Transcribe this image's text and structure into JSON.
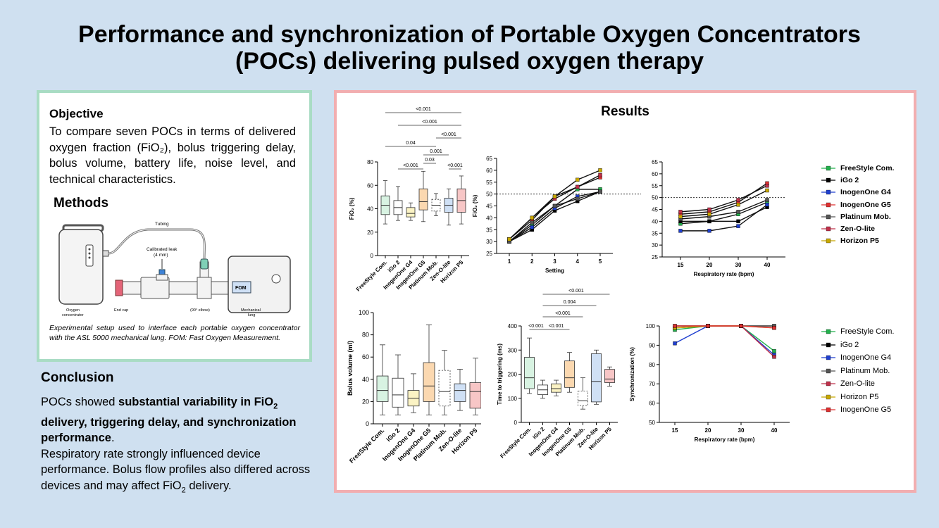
{
  "title": {
    "line1": "Performance and synchronization of Portable Oxygen Concentrators",
    "line2": "(POCs) delivering pulsed oxygen therapy"
  },
  "objective": {
    "heading": "Objective",
    "text": "To compare seven POCs in terms of delivered oxygen fraction (FiO₂), bolus triggering delay, bolus volume, battery life, noise level, and technical characteristics."
  },
  "methods": {
    "heading": "Methods",
    "diagram": {
      "tubing": "Tubing",
      "leak1": "Calibrated leak",
      "leak2": "(4 mm)",
      "concentrator1": "Oxygen",
      "concentrator2": "concentrator",
      "endcap": "End cap",
      "elbow": "(90° elbow)",
      "fom": "FOM",
      "lung1": "Mechanical",
      "lung2": "lung"
    },
    "caption": "Experimental setup used to interface each portable oxygen concentrator with the ASL 5000 mechanical lung. FOM: Fast Oxygen Measurement."
  },
  "conclusion": {
    "heading": "Conclusion",
    "p1_a": "POCs showed ",
    "p1_b": "substantial variability in FiO",
    "p1_sub": "2",
    "p1_c": " delivery, triggering delay, and synchronization performance",
    "p1_d": ".",
    "p2_a": "Respiratory rate strongly influenced device performance. Bolus flow profiles also differed across devices and may affect FiO",
    "p2_sub": "2",
    "p2_b": " delivery."
  },
  "results": {
    "heading": "Results"
  },
  "colors": {
    "FreeStyle Com.": "#22b14c",
    "iGo 2": "#000000",
    "InogenOne G4": "#1f3fd0",
    "InogenOne G5": "#e03030",
    "Platinum Mob.": "#555555",
    "Zen-O-lite": "#c0304a",
    "Horizon P5": "#c8a800"
  },
  "legend_top": [
    "FreeStyle Com.",
    "iGo 2",
    "InogenOne G4",
    "InogenOne G5",
    "Platinum Mob.",
    "Zen-O-lite",
    "Horizon P5"
  ],
  "legend_bottom": [
    "FreeStyle Com.",
    "iGo 2",
    "InogenOne G4",
    "Platinum Mob.",
    "Zen-O-lite",
    "Horizon P5",
    "InogenOne G5"
  ],
  "chart_data": [
    {
      "type": "box",
      "ylabel": "FiO₂ (%)",
      "ylim": [
        0,
        80
      ],
      "yticks": [
        0,
        20,
        40,
        60,
        80
      ],
      "categories": [
        "FreeStyle Com.",
        "iGo 2",
        "InogenOne G4",
        "InogenOne G5",
        "Platinum Mob.",
        "Zen-O-lite",
        "Horizon P5"
      ],
      "fills": [
        "#d8f3e2",
        "#ffffff",
        "#fbf3c4",
        "#fbd8b0",
        "#ffffff",
        "#cfe0f5",
        "#f7c6c6"
      ],
      "boxes": [
        {
          "min": 27,
          "q1": 35,
          "med": 43,
          "q3": 51,
          "max": 64
        },
        {
          "min": 30,
          "q1": 35,
          "med": 41,
          "q3": 47,
          "max": 59
        },
        {
          "min": 30,
          "q1": 33,
          "med": 36,
          "q3": 41,
          "max": 45
        },
        {
          "min": 29,
          "q1": 39,
          "med": 46,
          "q3": 57,
          "max": 72
        },
        {
          "min": 34,
          "q1": 38,
          "med": 43,
          "q3": 48,
          "max": 53
        },
        {
          "min": 26,
          "q1": 37,
          "med": 43,
          "q3": 49,
          "max": 57
        },
        {
          "min": 27,
          "q1": 37,
          "med": 47,
          "q3": 57,
          "max": 68
        }
      ],
      "pvalues": [
        "<0.001",
        "<0.001",
        "<0.001",
        "0.04",
        "0.001",
        "0.03",
        "<0.001",
        "<0.001"
      ]
    },
    {
      "type": "line",
      "xlabel": "Setting",
      "ylabel": "FiO₂ (%)",
      "x": [
        1,
        2,
        3,
        4,
        5
      ],
      "ylim": [
        25,
        65
      ],
      "yticks": [
        25,
        30,
        35,
        40,
        45,
        50,
        55,
        60,
        65
      ],
      "reference": 50,
      "series": [
        {
          "name": "FreeStyle Com.",
          "values": [
            30,
            37,
            45,
            52,
            52
          ]
        },
        {
          "name": "iGo 2",
          "values": [
            30,
            35,
            43,
            47,
            51
          ]
        },
        {
          "name": "InogenOne G4",
          "values": [
            30,
            36,
            44,
            49,
            51
          ]
        },
        {
          "name": "InogenOne G5",
          "values": [
            31,
            39,
            49,
            53,
            57
          ]
        },
        {
          "name": "Platinum Mob.",
          "values": [
            30,
            38,
            45,
            48,
            51
          ]
        },
        {
          "name": "Zen-O-lite",
          "values": [
            31,
            40,
            48,
            53,
            58
          ]
        },
        {
          "name": "Horizon P5",
          "values": [
            31,
            40,
            49,
            56,
            60
          ]
        }
      ]
    },
    {
      "type": "line",
      "xlabel": "Respiratory rate (bpm)",
      "x": [
        15,
        20,
        30,
        40
      ],
      "ylim": [
        25,
        65
      ],
      "yticks": [
        25,
        30,
        35,
        40,
        45,
        50,
        55,
        60,
        65
      ],
      "reference": 50,
      "series": [
        {
          "name": "FreeStyle Com.",
          "values": [
            39,
            40,
            43,
            48
          ]
        },
        {
          "name": "iGo 2",
          "values": [
            40,
            40,
            40,
            46
          ]
        },
        {
          "name": "InogenOne G4",
          "values": [
            36,
            36,
            38,
            47
          ]
        },
        {
          "name": "InogenOne G5",
          "values": [
            43,
            44,
            48,
            56
          ]
        },
        {
          "name": "Platinum Mob.",
          "values": [
            41,
            42,
            44,
            49
          ]
        },
        {
          "name": "Zen-O-lite",
          "values": [
            44,
            45,
            49,
            55
          ]
        },
        {
          "name": "Horizon P5",
          "values": [
            42,
            43,
            47,
            53
          ]
        }
      ]
    },
    {
      "type": "box",
      "ylabel": "Bolus volume (ml)",
      "ylim": [
        0,
        100
      ],
      "yticks": [
        0,
        20,
        40,
        60,
        80,
        100
      ],
      "categories": [
        "FreeStyle Com.",
        "iGo 2",
        "InogenOne G4",
        "InogenOne G5",
        "Platinum Mob.",
        "Zen-O-lite",
        "Horizon P5"
      ],
      "fills": [
        "#d8f3e2",
        "#ffffff",
        "#fbf3c4",
        "#fbd8b0",
        "#ffffff",
        "#cfe0f5",
        "#f7c6c6"
      ],
      "boxes": [
        {
          "min": 8,
          "q1": 20,
          "med": 30,
          "q3": 43,
          "max": 71
        },
        {
          "min": 8,
          "q1": 15,
          "med": 26,
          "q3": 41,
          "max": 62
        },
        {
          "min": 10,
          "q1": 16,
          "med": 23,
          "q3": 30,
          "max": 45
        },
        {
          "min": 8,
          "q1": 20,
          "med": 34,
          "q3": 55,
          "max": 89
        },
        {
          "min": 8,
          "q1": 16,
          "med": 29,
          "q3": 48,
          "max": 66
        },
        {
          "min": 12,
          "q1": 20,
          "med": 30,
          "q3": 36,
          "max": 49
        },
        {
          "min": 8,
          "q1": 14,
          "med": 29,
          "q3": 37,
          "max": 59
        }
      ]
    },
    {
      "type": "box",
      "ylabel": "Time to triggering (ms)",
      "ylim": [
        0,
        400
      ],
      "yticks": [
        0,
        100,
        200,
        300,
        400
      ],
      "categories": [
        "FreeStyle Com.",
        "iGo 2",
        "InogenOne G4",
        "InogenOne G5",
        "Platinum Mob.",
        "Zen-O-lite",
        "Horizon P5"
      ],
      "fills": [
        "#d8f3e2",
        "#ffffff",
        "#fbf3c4",
        "#fbd8b0",
        "#ffffff",
        "#cfe0f5",
        "#f7c6c6"
      ],
      "boxes": [
        {
          "min": 120,
          "q1": 140,
          "med": 185,
          "q3": 270,
          "max": 350
        },
        {
          "min": 100,
          "q1": 115,
          "med": 135,
          "q3": 155,
          "max": 175
        },
        {
          "min": 110,
          "q1": 125,
          "med": 140,
          "q3": 160,
          "max": 175
        },
        {
          "min": 125,
          "q1": 145,
          "med": 185,
          "q3": 255,
          "max": 290
        },
        {
          "min": 55,
          "q1": 70,
          "med": 90,
          "q3": 130,
          "max": 185
        },
        {
          "min": 75,
          "q1": 85,
          "med": 170,
          "q3": 285,
          "max": 300
        },
        {
          "min": 150,
          "q1": 165,
          "med": 180,
          "q3": 220,
          "max": 230
        }
      ],
      "pvalues": [
        "<0.001",
        "0.004",
        "<0.001",
        "<0.001",
        "<0.001"
      ]
    },
    {
      "type": "line",
      "xlabel": "Respiratory rate (bpm)",
      "ylabel": "Synchronization (%)",
      "x": [
        15,
        20,
        30,
        40
      ],
      "ylim": [
        50,
        100
      ],
      "yticks": [
        50,
        60,
        70,
        80,
        90,
        100
      ],
      "series": [
        {
          "name": "FreeStyle Com.",
          "values": [
            98,
            100,
            100,
            87
          ]
        },
        {
          "name": "iGo 2",
          "values": [
            100,
            100,
            100,
            100
          ]
        },
        {
          "name": "InogenOne G4",
          "values": [
            91,
            100,
            100,
            85
          ]
        },
        {
          "name": "Platinum Mob.",
          "values": [
            99,
            100,
            100,
            100
          ]
        },
        {
          "name": "Zen-O-lite",
          "values": [
            99,
            100,
            100,
            84
          ]
        },
        {
          "name": "Horizon P5",
          "values": [
            99,
            100,
            100,
            99
          ]
        },
        {
          "name": "InogenOne G5",
          "values": [
            100,
            100,
            100,
            99
          ]
        }
      ]
    }
  ]
}
